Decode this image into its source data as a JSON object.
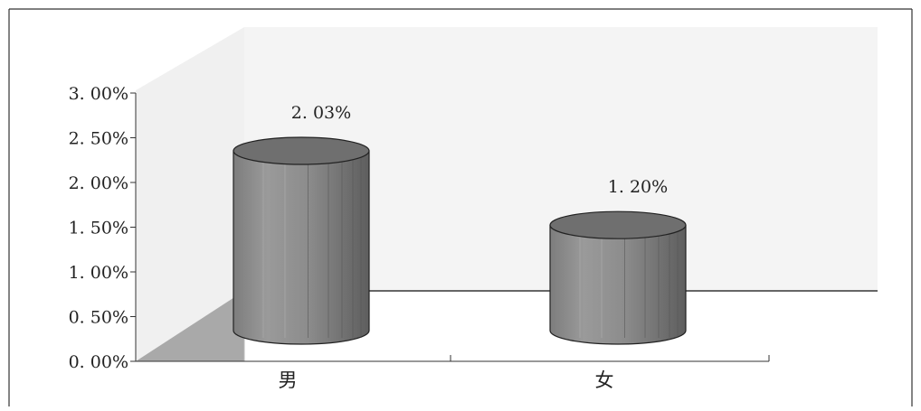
{
  "chart_data": {
    "type": "bar",
    "style": "3d-cylinder",
    "categories": [
      "男",
      "女"
    ],
    "values": [
      2.03,
      1.2
    ],
    "value_labels": [
      "2. 03%",
      "1. 20%"
    ],
    "y_ticks": [
      "0. 00%",
      "0. 50%",
      "1. 00%",
      "1. 50%",
      "2. 00%",
      "2. 50%",
      "3. 00%"
    ],
    "ylim": [
      0,
      3.0
    ],
    "y_unit": "%",
    "title": "",
    "xlabel": "",
    "ylabel": "",
    "grid": false,
    "legend": "none",
    "colors": {
      "bar_body": "#8a8a8a",
      "bar_top": "#6f6f6f",
      "back_wall": "#f4f4f4",
      "side_wall": "#a9a9a9",
      "frame": "#333333"
    }
  }
}
